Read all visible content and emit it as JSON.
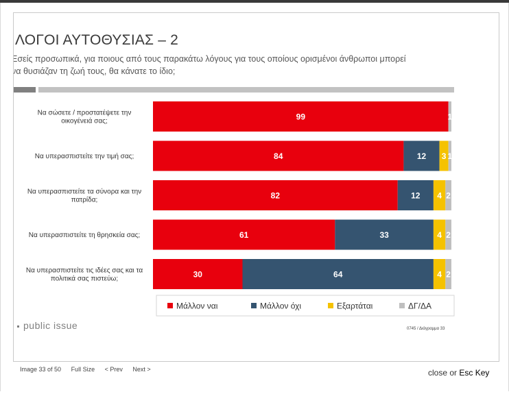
{
  "slide": {
    "title": "ΛΟΓΟΙ ΑΥΤΟΘΥΣΙΑΣ – 2",
    "subtitle_line1": "Εσείς προσωπικά, για ποιους από τους παρακάτω λόγους για τους οποίους ορισμένοι άνθρωποι μπορεί",
    "subtitle_line2": "να θυσιάζαν τη ζωή τους, θα κάνατε το ίδιο;",
    "logo_text": "public issue",
    "code": "0745 / Διάγραμμα 33"
  },
  "viewer": {
    "image_counter": "Image 33 of 50",
    "full_size": "Full Size",
    "prev": "< Prev",
    "next": "Next >",
    "close": "close",
    "or": "or",
    "esc": "Esc Key"
  },
  "colors": {
    "maybe_yes": "#e8000d",
    "maybe_no": "#355470",
    "depends": "#f5c200",
    "dk_na": "#bfbfbf"
  },
  "chart_data": {
    "type": "bar",
    "orientation": "horizontal",
    "stacked": true,
    "categories": [
      [
        "Να σώσετε / προστατέψετε την",
        "οικογένειά σας;"
      ],
      [
        "Να υπερασπιστείτε την τιμή σας;"
      ],
      [
        "Να υπερασπιστείτε τα σύνορα και την",
        "πατρίδα;"
      ],
      [
        "Να υπερασπιστείτε τη θρησκεία σας;"
      ],
      [
        "Να υπερασπιστείτε τις ιδέες σας και τα",
        "πολιτικά σας πιστεύω;"
      ]
    ],
    "series": [
      {
        "name": "Μάλλον ναι",
        "color": "#e8000d",
        "values": [
          99,
          84,
          82,
          61,
          30
        ]
      },
      {
        "name": "Μάλλον όχι",
        "color": "#355470",
        "values": [
          0,
          12,
          12,
          33,
          64
        ]
      },
      {
        "name": "Εξαρτάται",
        "color": "#f5c200",
        "values": [
          0,
          3,
          4,
          4,
          4
        ]
      },
      {
        "name": "ΔΓ/ΔΑ",
        "color": "#bfbfbf",
        "values": [
          1,
          1,
          2,
          2,
          2
        ]
      }
    ],
    "xlim": [
      0,
      100
    ],
    "legend_position": "bottom",
    "grid": false
  }
}
